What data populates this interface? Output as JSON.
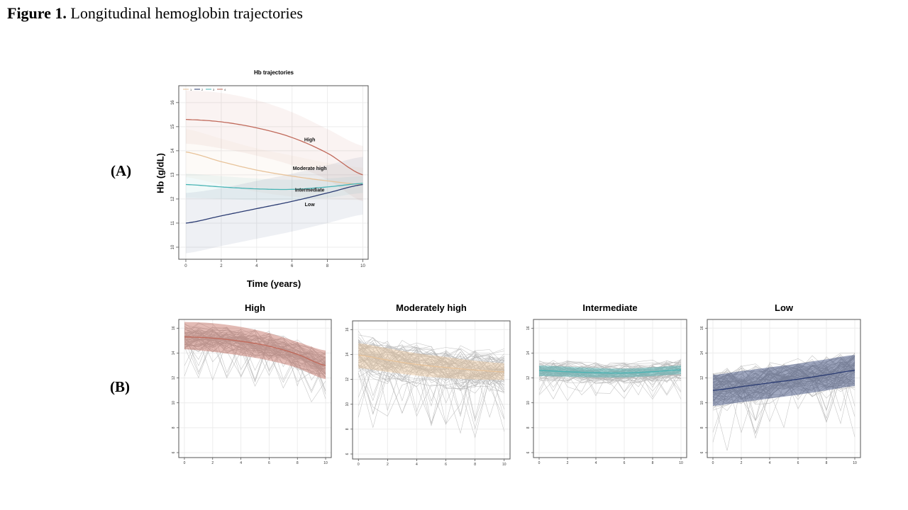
{
  "figure": {
    "label": "Figure 1.",
    "caption": "Longitudinal hemoglobin trajectories"
  },
  "panel_a": {
    "label": "(A)"
  },
  "panel_b": {
    "label": "(B)"
  },
  "colors": {
    "High": "#c0695a",
    "Moderately high": "#e8c39a",
    "Intermediate": "#48b4b4",
    "Low": "#2a3b72",
    "spaghetti": "#b4b4b4"
  },
  "chart_data": [
    {
      "id": "trajectories",
      "type": "line",
      "title": "Hb trajectories",
      "xlabel": "Time (years)",
      "ylabel": "Hb (g/dL)",
      "xlim": [
        -0.4,
        10.3
      ],
      "ylim": [
        9.5,
        16.7
      ],
      "x_ticks": [
        0,
        2,
        4,
        6,
        8,
        10
      ],
      "y_ticks": [
        10,
        11,
        12,
        13,
        14,
        15,
        16
      ],
      "grid": true,
      "legend": {
        "position": "top-left",
        "entries": [
          "1",
          "2",
          "3",
          "4"
        ]
      },
      "x": [
        0,
        2,
        4,
        6,
        8,
        10
      ],
      "series": [
        {
          "name": "High",
          "color_key": "High",
          "values": [
            15.3,
            15.2,
            14.95,
            14.55,
            13.9,
            13.0
          ],
          "lower": [
            14.3,
            14.1,
            13.8,
            13.4,
            12.8,
            11.9
          ],
          "upper": [
            16.5,
            16.4,
            16.1,
            15.6,
            14.9,
            14.2
          ]
        },
        {
          "name": "Moderate high",
          "color_key": "Moderately high",
          "values": [
            13.95,
            13.55,
            13.2,
            12.95,
            12.75,
            12.6
          ],
          "lower": [
            12.9,
            12.6,
            12.3,
            12.1,
            12.0,
            11.95
          ],
          "upper": [
            14.9,
            14.5,
            14.1,
            13.8,
            13.5,
            13.3
          ]
        },
        {
          "name": "Intermediate",
          "color_key": "Intermediate",
          "values": [
            12.6,
            12.5,
            12.42,
            12.4,
            12.5,
            12.65
          ],
          "lower": [
            12.05,
            12.0,
            11.95,
            11.95,
            12.05,
            12.25
          ],
          "upper": [
            13.05,
            12.95,
            12.85,
            12.8,
            12.85,
            12.95
          ]
        },
        {
          "name": "Low",
          "color_key": "Low",
          "values": [
            11.0,
            11.3,
            11.6,
            11.9,
            12.25,
            12.6
          ],
          "lower": [
            9.75,
            10.05,
            10.35,
            10.65,
            11.0,
            11.35
          ],
          "upper": [
            12.25,
            12.45,
            12.75,
            13.05,
            13.4,
            13.75
          ]
        }
      ],
      "annotations": [
        {
          "text": "High",
          "x": 7.0,
          "y": 14.4
        },
        {
          "text": "Moderate high",
          "x": 7.0,
          "y": 13.2
        },
        {
          "text": "Intermediate",
          "x": 7.0,
          "y": 12.3
        },
        {
          "text": "Low",
          "x": 7.0,
          "y": 11.7
        }
      ]
    },
    {
      "id": "high",
      "type": "line",
      "title": "High",
      "color_key": "High",
      "xlim": [
        -0.4,
        10.4
      ],
      "ylim": [
        5.6,
        16.7
      ],
      "x_ticks": [
        0,
        2,
        4,
        6,
        8,
        10
      ],
      "y_ticks": [
        6,
        8,
        10,
        12,
        14,
        16
      ],
      "grid": true,
      "x": [
        0,
        2,
        4,
        6,
        8,
        10
      ],
      "mean": [
        15.3,
        15.2,
        14.95,
        14.55,
        13.9,
        13.0
      ],
      "lower": [
        14.3,
        14.1,
        13.8,
        13.4,
        12.8,
        11.9
      ],
      "upper": [
        16.5,
        16.4,
        16.1,
        15.6,
        14.9,
        14.2
      ],
      "individual_spread": 1.4
    },
    {
      "id": "moderately-high",
      "type": "line",
      "title": "Moderately high",
      "color_key": "Moderately high",
      "xlim": [
        -0.4,
        10.4
      ],
      "ylim": [
        5.6,
        16.7
      ],
      "x_ticks": [
        0,
        2,
        4,
        6,
        8,
        10
      ],
      "y_ticks": [
        6,
        8,
        10,
        12,
        14,
        16
      ],
      "grid": true,
      "x": [
        0,
        2,
        4,
        6,
        8,
        10
      ],
      "mean": [
        13.95,
        13.55,
        13.2,
        12.95,
        12.75,
        12.6
      ],
      "lower": [
        12.9,
        12.6,
        12.3,
        12.1,
        12.0,
        11.95
      ],
      "upper": [
        14.9,
        14.5,
        14.1,
        13.8,
        13.5,
        13.3
      ],
      "individual_spread": 2.2
    },
    {
      "id": "intermediate",
      "type": "line",
      "title": "Intermediate",
      "color_key": "Intermediate",
      "xlim": [
        -0.4,
        10.4
      ],
      "ylim": [
        5.6,
        16.7
      ],
      "x_ticks": [
        0,
        2,
        4,
        6,
        8,
        10
      ],
      "y_ticks": [
        6,
        8,
        10,
        12,
        14,
        16
      ],
      "grid": true,
      "x": [
        0,
        2,
        4,
        6,
        8,
        10
      ],
      "mean": [
        12.6,
        12.5,
        12.42,
        12.4,
        12.5,
        12.65
      ],
      "lower": [
        12.15,
        12.1,
        12.05,
        12.05,
        12.15,
        12.3
      ],
      "upper": [
        13.0,
        12.9,
        12.8,
        12.75,
        12.85,
        13.0
      ],
      "individual_spread": 1.0
    },
    {
      "id": "low",
      "type": "line",
      "title": "Low",
      "color_key": "Low",
      "xlim": [
        -0.4,
        10.4
      ],
      "ylim": [
        5.6,
        16.7
      ],
      "x_ticks": [
        0,
        2,
        4,
        6,
        8,
        10
      ],
      "y_ticks": [
        6,
        8,
        10,
        12,
        14,
        16
      ],
      "grid": true,
      "x": [
        0,
        2,
        4,
        6,
        8,
        10
      ],
      "mean": [
        11.0,
        11.3,
        11.6,
        11.9,
        12.25,
        12.6
      ],
      "lower": [
        9.75,
        10.05,
        10.35,
        10.65,
        11.0,
        11.35
      ],
      "upper": [
        12.25,
        12.55,
        12.85,
        13.15,
        13.5,
        13.85
      ],
      "individual_spread": 2.0
    }
  ]
}
